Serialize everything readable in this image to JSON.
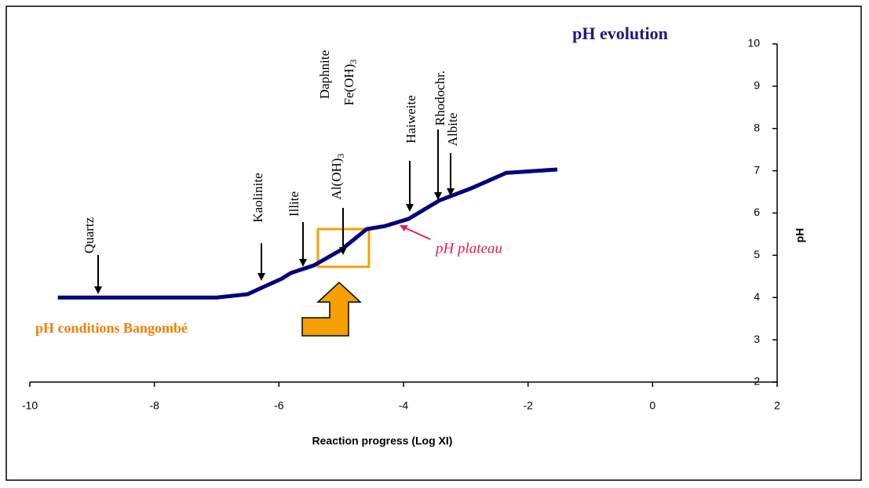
{
  "chart_data": {
    "type": "line",
    "title": "pH evolution",
    "x_label": "Reaction progress (Log XI)",
    "y_label": "pH",
    "xlim": [
      -10,
      2
    ],
    "xticks": [
      -10,
      -8,
      -6,
      -4,
      -2,
      0,
      2
    ],
    "ylim": [
      2,
      10
    ],
    "yticks": [
      2,
      3,
      4,
      5,
      6,
      7,
      8,
      9,
      10
    ],
    "series": [
      {
        "color": "#000080",
        "x": [
          -9.55,
          -8.5,
          -8,
          -7,
          -6.5,
          -6.28,
          -5.95,
          -5.81,
          -5.44,
          -5.0,
          -4.59,
          -4.3,
          -3.92,
          -3.42,
          -2.92,
          -2.35,
          -1.53
        ],
        "values": [
          4.0,
          4.0,
          4.0,
          4.0,
          4.08,
          4.23,
          4.45,
          4.58,
          4.76,
          5.13,
          5.62,
          5.69,
          5.86,
          6.3,
          6.58,
          6.95,
          7.03
        ]
      }
    ],
    "annotations": {
      "quartz": "Quartz",
      "kaolinite": "Kaolinite",
      "illite": "Illite",
      "aloh3": {
        "text": "Al(OH)",
        "sub": "3"
      },
      "daphnite": "Daphnite",
      "feoh3": {
        "text": "Fe(OH)",
        "sub": "3"
      },
      "haiweite": "Haiweite",
      "rhodochr": "Rhodochr.",
      "albite": "Albite",
      "plateau": "pH plateau",
      "conditions": "pH conditions Bangombé"
    }
  }
}
